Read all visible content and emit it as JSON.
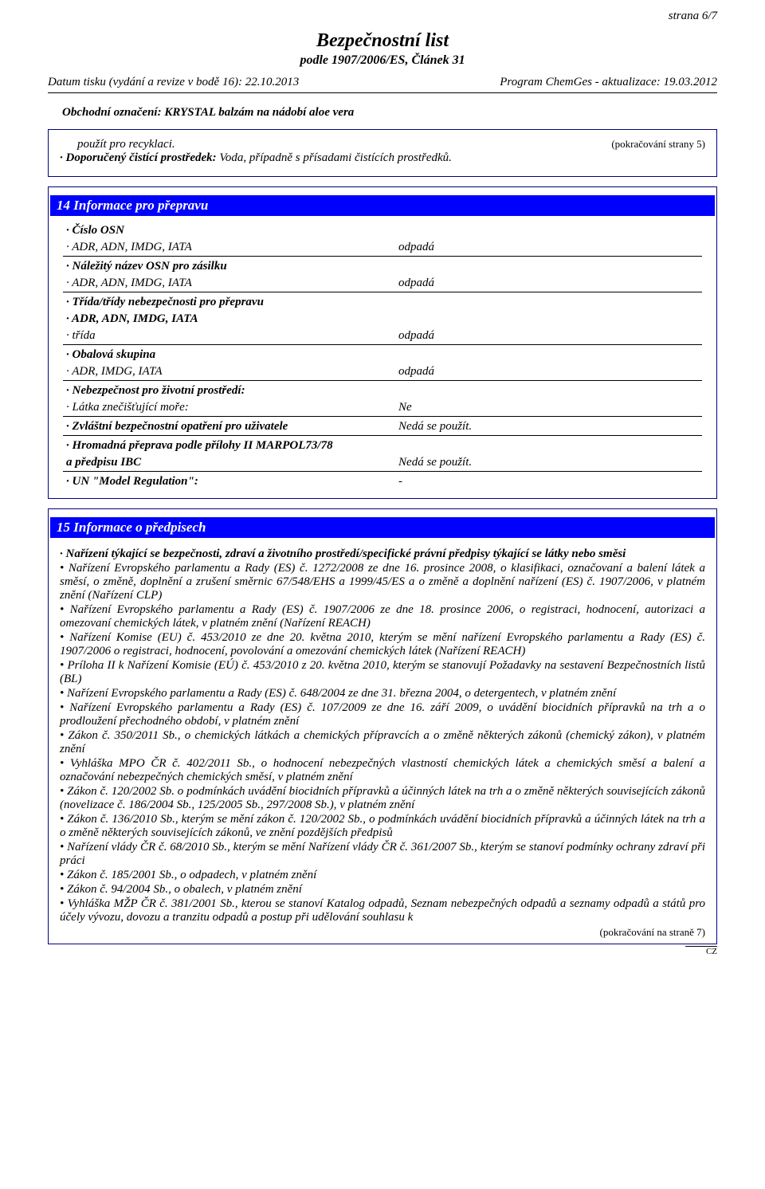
{
  "page_label": "strana 6/7",
  "title": "Bezpečnostní list",
  "subtitle": "podle 1907/2006/ES, Článek 31",
  "header_left": "Datum tisku (vydání a revize v bodě 16): 22.10.2013",
  "header_right": "Program ChemGes - aktualizace: 19.03.2012",
  "trade_name": "Obchodní označení: KRYSTAL balzám na nádobí aloe vera",
  "cont_from": "(pokračování strany 5)",
  "recycling_line": "použít pro recyklaci.",
  "cleaning_label": "· Doporučený čistící prostředek: ",
  "cleaning_value": "Voda, případně s přísadami čistících prostředků.",
  "section14": {
    "title": "14 Informace pro přepravu",
    "rows": [
      {
        "label1": "· Číslo OSN",
        "label2": "· ADR, ADN, IMDG, IATA",
        "value": "odpadá",
        "bold1": true
      },
      {
        "label1": "· Náležitý název OSN pro zásilku",
        "label2": "· ADR, ADN, IMDG, IATA",
        "value": "odpadá",
        "bold1": true
      },
      {
        "label1": "· Třída/třídy nebezpečnosti pro přepravu",
        "value": "",
        "bold1": true,
        "single": true
      },
      {
        "label1": "· ADR, ADN, IMDG, IATA",
        "label2": "· třída",
        "value": "odpadá",
        "bold1": true,
        "nosep": true
      },
      {
        "label1": "· Obalová skupina",
        "label2": "· ADR, IMDG, IATA",
        "value": "odpadá",
        "bold1": true
      },
      {
        "label1": "· Nebezpečnost pro životní prostředí:",
        "label2": "· Látka znečišťující moře:",
        "value": "Ne",
        "bold1": true
      },
      {
        "label1": "· Zvláštní bezpečnostní opatření pro uživatele",
        "value": "Nedá se použít.",
        "bold1": true,
        "single": true
      },
      {
        "label1": "· Hromadná přeprava podle přílohy II MARPOL73/78",
        "label2": "  a předpisu IBC",
        "value": "Nedá se použít.",
        "bold1": true,
        "bold2": true
      },
      {
        "label1": "· UN \"Model Regulation\":",
        "value": "-",
        "bold1": true,
        "single": true
      }
    ]
  },
  "section15": {
    "title": "15 Informace o předpisech",
    "lead_label": "· Nařízení týkající se bezpečnosti, zdraví a životního prostředí/specifické právní předpisy týkající se látky nebo směsi",
    "bullets": [
      "• Nařízení Evropského parlamentu a Rady (ES) č. 1272/2008 ze dne 16. prosince 2008, o klasifikaci, označovaní a balení látek a směsí, o změně, doplnění a zrušení směrnic 67/548/EHS a 1999/45/ES a o změně a doplnění nařízení (ES) č. 1907/2006, v platném znění (Nařízení CLP)",
      "• Nařízení Evropského parlamentu a Rady (ES) č. 1907/2006 ze dne 18. prosince 2006, o registraci, hodnocení, autorizaci a omezovaní chemických látek, v platném znění (Nařízení REACH)",
      "• Nařízení Komise (EU) č. 453/2010 ze dne 20. května 2010, kterým se mění nařízení Evropského parlamentu a Rady (ES) č. 1907/2006 o registraci, hodnocení, povolování a omezování chemických látek (Nařízení REACH)",
      "• Príloha II k Nařízení Komisie (EÚ) č. 453/2010 z 20. května 2010, kterým se stanovují Požadavky na sestavení Bezpečnostních listů (BL)",
      "• Nařízení Evropského parlamentu a Rady (ES) č. 648/2004 ze dne 31. března 2004, o detergentech, v platném znění",
      "• Nařízení Evropského parlamentu a Rady (ES) č. 107/2009 ze dne 16. září 2009, o uvádění biocidních přípravků na trh a o prodloužení přechodného období, v platném znění",
      "• Zákon č. 350/2011 Sb., o chemických látkách a chemických přípravcích a o změně některých zákonů (chemický zákon), v platném znění",
      "• Vyhláška MPO ČR č. 402/2011 Sb., o hodnocení nebezpečných vlastností chemických látek a chemických směsí a balení a označování nebezpečných chemických směsí, v platném znění",
      "• Zákon č. 120/2002 Sb. o podmínkách uvádění biocidních přípravků a účinných látek na trh a o změně některých souvisejících zákonů (novelizace č. 186/2004 Sb., 125/2005 Sb., 297/2008 Sb.), v platném znění",
      "• Zákon č. 136/2010 Sb., kterým se mění zákon č. 120/2002 Sb., o podmínkách uvádění biocidních přípravků a účinných látek na trh a o změně některých souvisejících zákonů, ve znění pozdějších předpisů",
      "• Nařízení vlády ČR č. 68/2010 Sb., kterým se mění Nařízení vlády ČR č. 361/2007 Sb., kterým se stanoví podmínky ochrany zdraví při práci",
      "• Zákon č. 185/2001 Sb., o odpadech, v platném znění",
      "• Zákon č. 94/2004 Sb., o obalech, v platném znění",
      "• Vyhláška MŽP ČR č. 381/2001 Sb., kterou se stanoví Katalog odpadů, Seznam nebezpečných odpadů a seznamy odpadů a států pro účely vývozu, dovozu a tranzitu odpadů a postup při udělování souhlasu k"
    ]
  },
  "cont_to": "(pokračování na straně 7)",
  "lang": "CZ",
  "colors": {
    "section_bg": "#0000ff",
    "section_fg": "#ffffff",
    "border": "#000080",
    "text": "#000000",
    "page_bg": "#ffffff"
  }
}
